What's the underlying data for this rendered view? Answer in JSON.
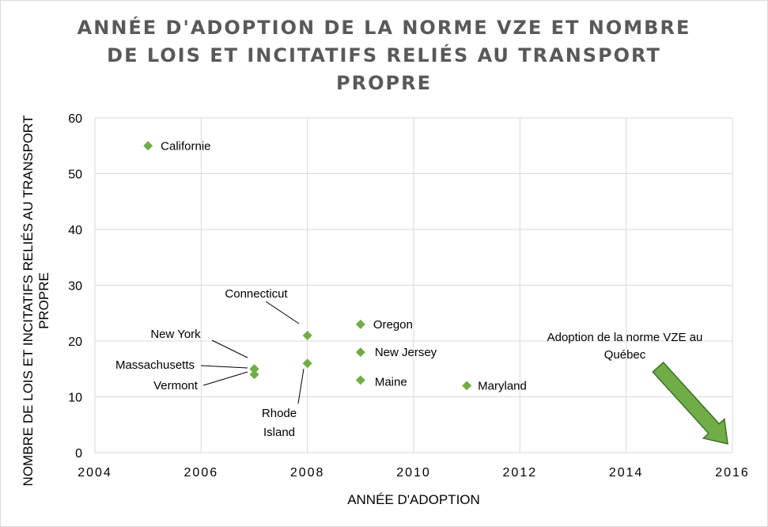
{
  "chart_data": {
    "type": "scatter",
    "title": [
      "ANNÉE D'ADOPTION DE LA NORME VZE ET NOMBRE",
      "DE LOIS ET INCITATIFS RELIÉS AU TRANSPORT",
      "PROPRE"
    ],
    "xlabel": "ANNÉE D'ADOPTION",
    "ylabel": [
      "NOMBRE DE LOIS ET INCITATIFS RELIÉS AU TRANSPORT",
      "PROPRE"
    ],
    "xlim": [
      2004,
      2016
    ],
    "ylim": [
      0,
      60
    ],
    "x_ticks": [
      2004,
      2006,
      2008,
      2010,
      2012,
      2014,
      2016
    ],
    "y_ticks": [
      0,
      10,
      20,
      30,
      40,
      50,
      60
    ],
    "grid": true,
    "legend": "none",
    "marker_color": "#70ad47",
    "points": [
      {
        "label": "California",
        "text": "Californie",
        "x": 2005,
        "y": 55
      },
      {
        "label": "Connecticut",
        "text": "Connecticut",
        "x": 2008,
        "y": 21
      },
      {
        "label": "Rhode Island",
        "text": "Rhode Island",
        "x": 2008,
        "y": 16
      },
      {
        "label": "New York",
        "text": "New York",
        "x": 2007,
        "y": 15
      },
      {
        "label": "Massachusetts",
        "text": "Massachusetts",
        "x": 2007,
        "y": 15
      },
      {
        "label": "Vermont",
        "text": "Vermont",
        "x": 2007,
        "y": 14
      },
      {
        "label": "Oregon",
        "text": "Oregon",
        "x": 2009,
        "y": 23
      },
      {
        "label": "New Jersey",
        "text": "New Jersey",
        "x": 2009,
        "y": 18
      },
      {
        "label": "Maine",
        "text": "Maine",
        "x": 2009,
        "y": 13
      },
      {
        "label": "Maryland",
        "text": "Maryland",
        "x": 2011,
        "y": 12
      }
    ],
    "annotation": {
      "text": "Adoption de la norme VZE au Québec",
      "arrow_color": "#70ad47",
      "arrow_target": {
        "x": 2016,
        "y": 1
      }
    }
  }
}
